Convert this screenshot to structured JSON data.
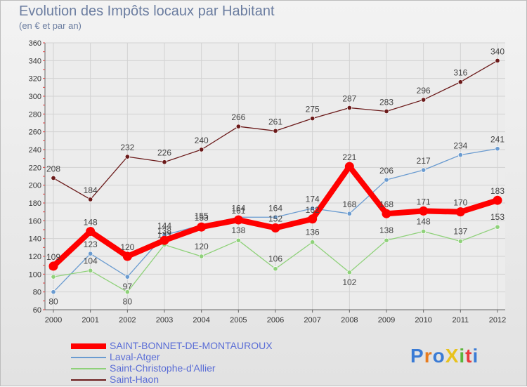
{
  "title": "Evolution des Impôts locaux par Habitant",
  "subtitle": "(en € et par an)",
  "logo": "ProXiti",
  "chart_data": {
    "type": "line",
    "title": "Evolution des Impôts locaux par Habitant",
    "subtitle": "(en € et par an)",
    "xlabel": "",
    "ylabel": "",
    "ylim": [
      60,
      360
    ],
    "yticks": [
      60,
      80,
      100,
      120,
      140,
      160,
      180,
      200,
      220,
      240,
      260,
      280,
      300,
      320,
      340,
      360
    ],
    "grid": true,
    "legend_position": "bottom-left",
    "x": [
      "2000",
      "2001",
      "2002",
      "2003",
      "2004",
      "2005",
      "2006",
      "2007",
      "2008",
      "2009",
      "2010",
      "2011",
      "2012"
    ],
    "series": [
      {
        "name": "Saint-Haon",
        "color": "#6b1a1a",
        "values": [
          208,
          184,
          232,
          226,
          240,
          266,
          261,
          275,
          287,
          283,
          296,
          316,
          340
        ]
      },
      {
        "name": "Laval-Atger",
        "color": "#6a9bd0",
        "values": [
          80,
          123,
          97,
          144,
          155,
          164,
          164,
          174,
          168,
          206,
          217,
          234,
          241
        ]
      },
      {
        "name": "Saint-Christophe-d'Allier",
        "color": "#8fd17a",
        "values": [
          97,
          104,
          80,
          133,
          120,
          138,
          106,
          136,
          102,
          138,
          148,
          137,
          153
        ]
      },
      {
        "name": "SAINT-BONNET-DE-MONTAUROUX",
        "color": "#ff0000",
        "values": [
          109,
          148,
          120,
          138,
          153,
          161,
          152,
          162,
          221,
          168,
          171,
          170,
          183
        ]
      }
    ],
    "legend_order": [
      "SAINT-BONNET-DE-MONTAUROUX",
      "Laval-Atger",
      "Saint-Christophe-d'Allier",
      "Saint-Haon"
    ]
  }
}
